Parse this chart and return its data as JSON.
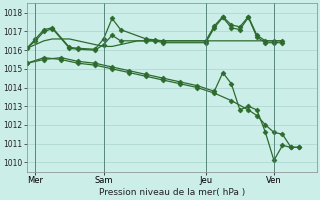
{
  "background_color": "#cceee8",
  "plot_bg_color": "#cceee8",
  "grid_color": "#aad4cc",
  "line_color": "#2d6a2d",
  "xlabel": "Pression niveau de la mer( hPa )",
  "ylim": [
    1009.5,
    1018.5
  ],
  "yticks": [
    1010,
    1011,
    1012,
    1013,
    1014,
    1015,
    1016,
    1017,
    1018
  ],
  "xlim": [
    0,
    34
  ],
  "xtick_labels": [
    "Mer",
    "Sam",
    "Jeu",
    "Ven"
  ],
  "xtick_positions": [
    1,
    9,
    21,
    29
  ],
  "vlines": [
    1,
    9,
    21,
    29
  ],
  "series": [
    {
      "x": [
        0,
        1,
        2,
        3,
        4,
        5,
        6,
        7,
        8,
        9,
        10,
        11,
        12,
        13,
        14,
        15,
        16,
        17,
        18,
        19,
        20,
        21,
        22,
        23,
        24,
        25,
        26,
        27,
        28,
        29,
        30
      ],
      "y": [
        1016.1,
        1016.3,
        1016.5,
        1016.6,
        1016.6,
        1016.6,
        1016.5,
        1016.4,
        1016.3,
        1016.2,
        1016.2,
        1016.3,
        1016.4,
        1016.5,
        1016.5,
        1016.5,
        1016.5,
        1016.5,
        1016.5,
        1016.5,
        1016.5,
        1016.5,
        1016.5,
        1016.5,
        1016.5,
        1016.5,
        1016.5,
        1016.5,
        1016.5,
        1016.5,
        1016.5
      ],
      "marker": false,
      "lw": 0.9
    },
    {
      "x": [
        0,
        1,
        2,
        3,
        5,
        6,
        8,
        9,
        10,
        11,
        14,
        15,
        16,
        21,
        22,
        23,
        24,
        25,
        26,
        27,
        28,
        29,
        30
      ],
      "y": [
        1016.1,
        1016.6,
        1017.1,
        1017.2,
        1016.15,
        1016.1,
        1016.05,
        1016.6,
        1017.7,
        1017.1,
        1016.6,
        1016.55,
        1016.5,
        1016.5,
        1017.3,
        1017.8,
        1017.35,
        1017.25,
        1017.8,
        1016.8,
        1016.5,
        1016.5,
        1016.5
      ],
      "marker": true,
      "lw": 0.9
    },
    {
      "x": [
        0,
        1,
        2,
        3,
        5,
        6,
        8,
        9,
        10,
        11,
        14,
        15,
        16,
        21,
        22,
        23,
        24,
        25,
        26,
        27,
        28,
        29,
        30
      ],
      "y": [
        1016.1,
        1016.5,
        1017.0,
        1017.15,
        1016.1,
        1016.05,
        1016.0,
        1016.3,
        1016.8,
        1016.5,
        1016.5,
        1016.5,
        1016.4,
        1016.4,
        1017.2,
        1017.75,
        1017.2,
        1017.1,
        1017.75,
        1016.7,
        1016.4,
        1016.4,
        1016.4
      ],
      "marker": true,
      "lw": 0.9
    },
    {
      "x": [
        0,
        2,
        4,
        6,
        8,
        10,
        12,
        14,
        16,
        18,
        20,
        22,
        24,
        26,
        27,
        28,
        29,
        30,
        31,
        32
      ],
      "y": [
        1015.3,
        1015.6,
        1015.5,
        1015.3,
        1015.2,
        1015.0,
        1014.8,
        1014.6,
        1014.4,
        1014.2,
        1014.0,
        1013.7,
        1013.3,
        1012.8,
        1012.5,
        1012.0,
        1011.6,
        1011.5,
        1010.8,
        1010.8
      ],
      "marker": true,
      "lw": 0.9
    },
    {
      "x": [
        0,
        2,
        4,
        6,
        8,
        10,
        12,
        14,
        16,
        18,
        20,
        22,
        23,
        24,
        25,
        26,
        27,
        28,
        29,
        30,
        31,
        32
      ],
      "y": [
        1015.3,
        1015.5,
        1015.6,
        1015.4,
        1015.3,
        1015.1,
        1014.9,
        1014.7,
        1014.5,
        1014.3,
        1014.1,
        1013.8,
        1014.8,
        1014.2,
        1012.8,
        1013.0,
        1012.8,
        1011.6,
        1010.1,
        1010.9,
        1010.8,
        1010.8
      ],
      "marker": true,
      "lw": 0.9
    }
  ]
}
